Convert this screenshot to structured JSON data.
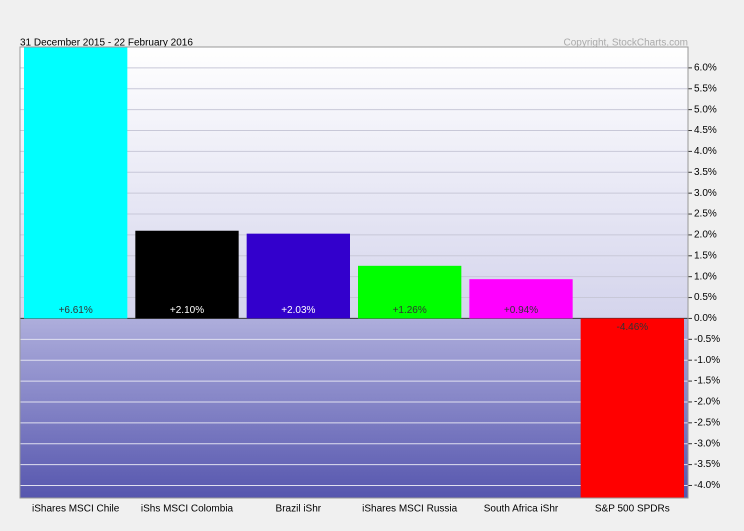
{
  "chart_data": {
    "type": "bar",
    "subtitle": "31 December 2015 - 22 February 2016",
    "credit": "Copyright, StockCharts.com",
    "legend": [
      {
        "name": "S&P 500 SPDRs",
        "color": "#ff0000"
      },
      {
        "name": "Brazil iShr",
        "color": "#3300cc"
      },
      {
        "name": "iShares MSCI Russia",
        "color": "#00ff00"
      },
      {
        "name": "South Africa iShr",
        "color": "#ff00ff"
      },
      {
        "name": "iShares MSCI Chile",
        "color": "#00ffff"
      },
      {
        "name": "iShs MSCI Colombia",
        "color": "#000000"
      }
    ],
    "categories": [
      "iShares MSCI Chile",
      "iShs MSCI Colombia",
      "Brazil iShr",
      "iShares MSCI Russia",
      "South Africa iShr",
      "S&P 500 SPDRs"
    ],
    "values": [
      6.61,
      2.1,
      2.03,
      1.26,
      0.94,
      -4.46
    ],
    "value_labels": [
      "+6.61%",
      "+2.10%",
      "+2.03%",
      "+1.26%",
      "+0.94%",
      "-4.46%"
    ],
    "colors": [
      "#00ffff",
      "#000000",
      "#3300cc",
      "#00ff00",
      "#ff00ff",
      "#ff0000"
    ],
    "value_label_colors": [
      "#333333",
      "#ffffff",
      "#ffffff",
      "#333333",
      "#333333",
      "#333333"
    ],
    "ylim": [
      -4.3,
      6.5
    ],
    "yticks": [
      {
        "value": 6,
        "label": "6.0%"
      },
      {
        "value": 5.5,
        "label": "5.5%"
      },
      {
        "value": 5,
        "label": "5.0%"
      },
      {
        "value": 4.5,
        "label": "4.5%"
      },
      {
        "value": 4,
        "label": "4.0%"
      },
      {
        "value": 3.5,
        "label": "3.5%"
      },
      {
        "value": 3,
        "label": "3.0%"
      },
      {
        "value": 2.5,
        "label": "2.5%"
      },
      {
        "value": 2,
        "label": "2.0%"
      },
      {
        "value": 1.5,
        "label": "1.5%"
      },
      {
        "value": 1,
        "label": "1.0%"
      },
      {
        "value": 0.5,
        "label": "0.5%"
      },
      {
        "value": 0,
        "label": "0.0%"
      },
      {
        "value": -0.5,
        "label": "-0.5%"
      },
      {
        "value": -1,
        "label": "-1.0%"
      },
      {
        "value": -1.5,
        "label": "-1.5%"
      },
      {
        "value": -2,
        "label": "-2.0%"
      },
      {
        "value": -2.5,
        "label": "-2.5%"
      },
      {
        "value": -3,
        "label": "-3.0%"
      },
      {
        "value": -3.5,
        "label": "-3.5%"
      },
      {
        "value": -4,
        "label": "-4.0%"
      }
    ],
    "grid": true
  }
}
